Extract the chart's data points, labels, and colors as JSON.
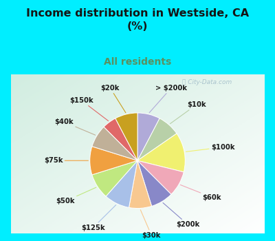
{
  "title": "Income distribution in Westside, CA\n(%)",
  "subtitle": "All residents",
  "labels": [
    "> $200k",
    "$10k",
    "$100k",
    "$60k",
    "$200k",
    "$30k",
    "$125k",
    "$50k",
    "$75k",
    "$40k",
    "$150k",
    "$20k"
  ],
  "values": [
    8,
    8,
    14,
    9,
    8,
    8,
    9,
    9,
    10,
    8,
    5,
    8
  ],
  "colors": [
    "#b0aad8",
    "#b8d0a8",
    "#f0f070",
    "#f0a8b8",
    "#8888c8",
    "#f8c890",
    "#a8c0e8",
    "#c0e880",
    "#f0a040",
    "#c0b098",
    "#e06868",
    "#c8a020"
  ],
  "bg_cyan": "#00eeff",
  "bg_chart_start": "#d0ede0",
  "bg_chart_end": "#f0faf4",
  "title_color": "#151515",
  "subtitle_color": "#5a9060",
  "watermark": "ⓘ City-Data.com",
  "watermark_color": "#a0bbc8"
}
